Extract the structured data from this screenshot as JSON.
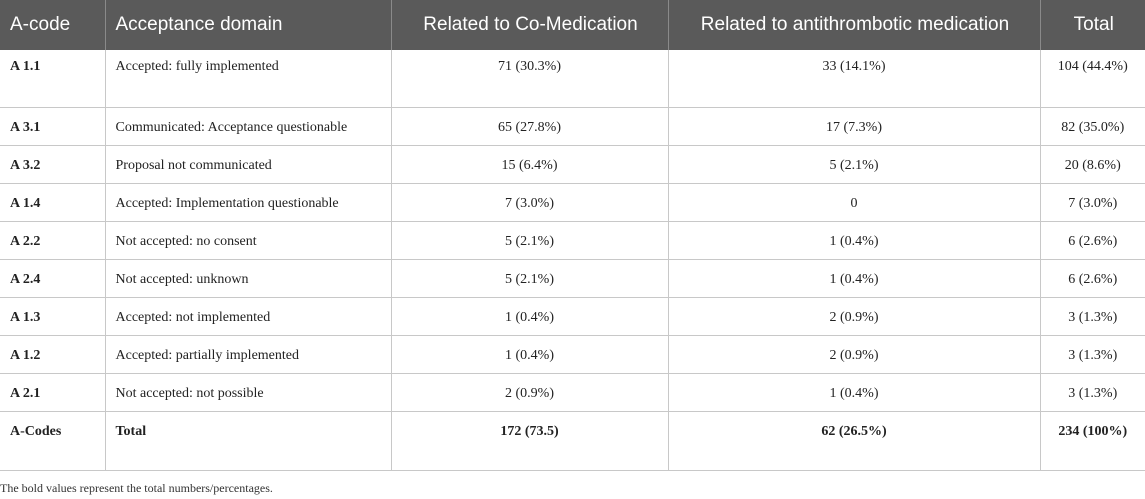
{
  "table": {
    "headers": [
      "A-code",
      "Acceptance domain",
      "Related to Co-Medication",
      "Related to antithrombotic medication",
      "Total"
    ],
    "rows": [
      {
        "code": "A 1.1",
        "domain": "Accepted: fully implemented",
        "co_medication": "71 (30.3%)",
        "antithrombotic": "33 (14.1%)",
        "total": "104 (44.4%)"
      },
      {
        "code": "A 3.1",
        "domain": "Communicated: Acceptance questionable",
        "co_medication": "65 (27.8%)",
        "antithrombotic": "17 (7.3%)",
        "total": "82 (35.0%)"
      },
      {
        "code": "A 3.2",
        "domain": "Proposal not communicated",
        "co_medication": "15 (6.4%)",
        "antithrombotic": "5 (2.1%)",
        "total": "20 (8.6%)"
      },
      {
        "code": "A 1.4",
        "domain": "Accepted: Implementation questionable",
        "co_medication": "7 (3.0%)",
        "antithrombotic": "0",
        "total": "7 (3.0%)"
      },
      {
        "code": "A 2.2",
        "domain": "Not accepted: no consent",
        "co_medication": "5 (2.1%)",
        "antithrombotic": "1 (0.4%)",
        "total": "6 (2.6%)"
      },
      {
        "code": "A 2.4",
        "domain": "Not accepted: unknown",
        "co_medication": "5 (2.1%)",
        "antithrombotic": "1 (0.4%)",
        "total": "6 (2.6%)"
      },
      {
        "code": "A 1.3",
        "domain": "Accepted: not implemented",
        "co_medication": "1 (0.4%)",
        "antithrombotic": "2 (0.9%)",
        "total": "3 (1.3%)"
      },
      {
        "code": "A 1.2",
        "domain": "Accepted: partially implemented",
        "co_medication": "1 (0.4%)",
        "antithrombotic": "2 (0.9%)",
        "total": "3 (1.3%)"
      },
      {
        "code": "A 2.1",
        "domain": "Not accepted: not possible",
        "co_medication": "2 (0.9%)",
        "antithrombotic": "1 (0.4%)",
        "total": "3 (1.3%)"
      },
      {
        "code": "A-Codes",
        "domain": "Total",
        "co_medication": "172 (73.5)",
        "antithrombotic": "62 (26.5%)",
        "total": "234 (100%)"
      }
    ]
  },
  "footnote": "The bold values represent the total numbers/percentages.",
  "colors": {
    "header_background": "#5a5a5a",
    "header_text": "#ffffff",
    "grid_lines": "#c8c8c8"
  }
}
